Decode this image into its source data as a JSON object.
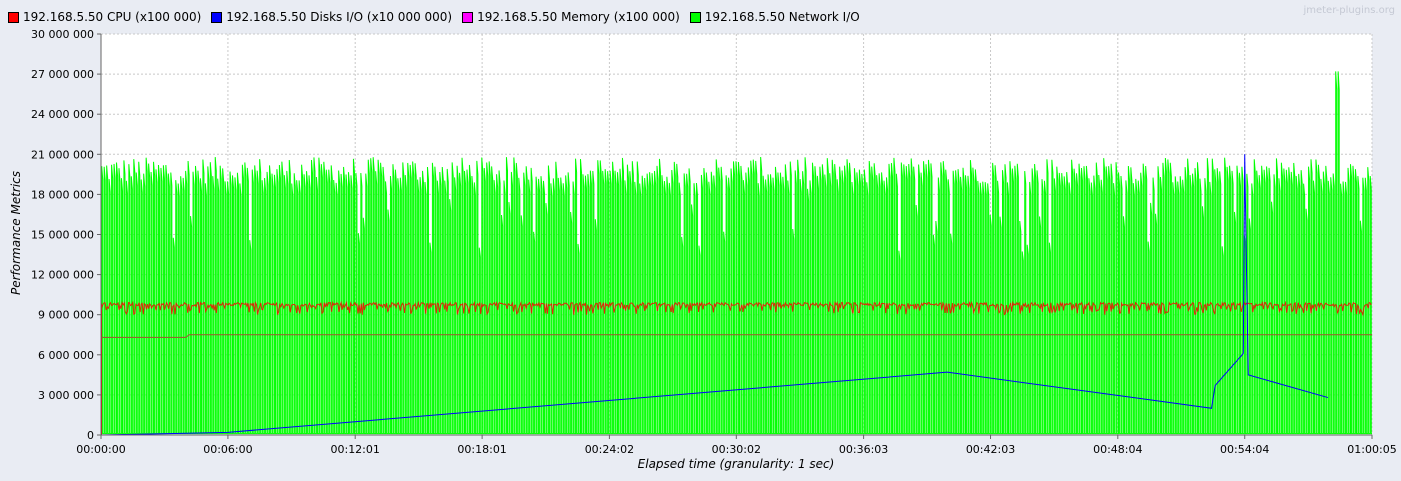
{
  "legend": [
    {
      "label": "192.168.5.50 CPU (x100 000)",
      "color": "#ff0000"
    },
    {
      "label": "192.168.5.50 Disks I/O (x10 000 000)",
      "color": "#0000ff"
    },
    {
      "label": "192.168.5.50 Memory (x100 000)",
      "color": "#ff00ff"
    },
    {
      "label": "192.168.5.50 Network I/O",
      "color": "#00ff00"
    }
  ],
  "watermark": "jmeter-plugins.org",
  "chart_data": {
    "type": "line",
    "title": "",
    "xlabel": "Elapsed time (granularity: 1 sec)",
    "ylabel": "Performance Metrics",
    "ylim": [
      0,
      30000000
    ],
    "xlim_seconds": [
      0,
      3605
    ],
    "grid": true,
    "legend_position": "top",
    "y_ticks": [
      "0",
      "3 000 000",
      "6 000 000",
      "9 000 000",
      "12 000 000",
      "15 000 000",
      "18 000 000",
      "21 000 000",
      "24 000 000",
      "27 000 000",
      "30 000 000"
    ],
    "x_ticks": [
      "00:00:00",
      "00:06:00",
      "00:12:01",
      "00:18:01",
      "00:24:02",
      "00:30:02",
      "00:36:03",
      "00:42:03",
      "00:48:04",
      "00:54:04",
      "01:00:05"
    ],
    "x_tick_seconds": [
      0,
      360,
      721,
      1081,
      1442,
      1802,
      2163,
      2523,
      2884,
      3244,
      3605
    ],
    "series": [
      {
        "name": "192.168.5.50 CPU (x100 000)",
        "pattern": "noisy band",
        "level": 9800000,
        "range": [
          9000000,
          9900000
        ]
      },
      {
        "name": "192.168.5.50 Disks I/O (x10 000 000)",
        "points": [
          [
            0,
            0
          ],
          [
            360,
            200000
          ],
          [
            2400,
            4700000
          ],
          [
            3150,
            2000000
          ],
          [
            3160,
            3700000
          ],
          [
            3240,
            6100000
          ],
          [
            3244,
            21000000
          ],
          [
            3248,
            14000000
          ],
          [
            3254,
            4500000
          ],
          [
            3480,
            2800000
          ]
        ]
      },
      {
        "name": "192.168.5.50 Memory (x100 000)",
        "points": [
          [
            0,
            7300000
          ],
          [
            240,
            7300000
          ],
          [
            250,
            7500000
          ],
          [
            3605,
            7500000
          ]
        ]
      },
      {
        "name": "192.168.5.50 Network I/O",
        "pattern": "periodic spikes",
        "baseline": 100000,
        "peak_range": [
          18800000,
          20800000
        ],
        "max_peak": 27200000,
        "max_peak_at_seconds": 3505
      }
    ]
  }
}
